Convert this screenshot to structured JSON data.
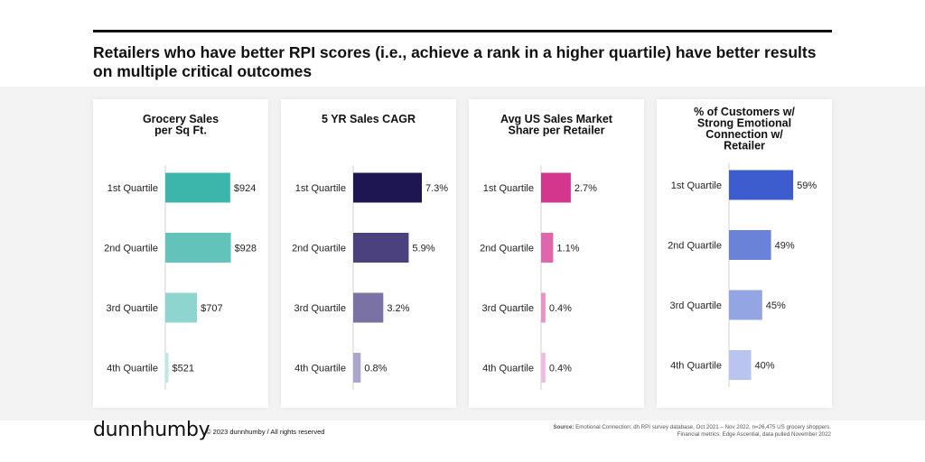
{
  "headline": "Retailers who have better RPI scores (i.e., achieve a rank in a higher quartile) have better results on multiple critical outcomes",
  "footer": {
    "logo": "dunnhumby",
    "copyright": "© 2023 dunnhumby / All rights reserved",
    "source_label": "Source:",
    "source_text": " Emotional Connection: dh RPI survey database, Oct 2021 – Nov 2022, n=26,475 US grocery shoppers.  Financial metrics: Edge Ascential, data pulled November 2022"
  },
  "chart_data": [
    {
      "type": "bar",
      "orientation": "horizontal",
      "title_lines": [
        "Grocery Sales",
        "per Sq Ft."
      ],
      "categories": [
        "1st Quartile",
        "2nd Quartile",
        "3rd Quartile",
        "4th Quartile"
      ],
      "values": [
        924,
        928,
        707,
        521
      ],
      "labels": [
        "$924",
        "$928",
        "$707",
        "$521"
      ],
      "xlim": [
        500,
        960
      ],
      "colors": [
        "#3cb6aa",
        "#62c3bb",
        "#8fd5cf",
        "#bfe7e3"
      ]
    },
    {
      "type": "bar",
      "orientation": "horizontal",
      "title_lines": [
        "5 YR Sales CAGR"
      ],
      "categories": [
        "1st Quartile",
        "2nd Quartile",
        "3rd Quartile",
        "4th Quartile"
      ],
      "values": [
        7.3,
        5.9,
        3.2,
        0.8
      ],
      "labels": [
        "7.3%",
        "5.9%",
        "3.2%",
        "0.8%"
      ],
      "xlim": [
        0,
        7.3
      ],
      "colors": [
        "#1e1652",
        "#4b417e",
        "#7a72a5",
        "#aba6cb"
      ]
    },
    {
      "type": "bar",
      "orientation": "horizontal",
      "title_lines": [
        "Avg US Sales Market",
        "Share per Retailer"
      ],
      "categories": [
        "1st Quartile",
        "2nd Quartile",
        "3rd Quartile",
        "4th Quartile"
      ],
      "values": [
        2.7,
        1.1,
        0.4,
        0.4
      ],
      "labels": [
        "2.7%",
        "1.1%",
        "0.4%",
        "0.4%"
      ],
      "xlim": [
        0,
        4.6
      ],
      "colors": [
        "#d4358d",
        "#e066ab",
        "#e994c5",
        "#f0bcdb"
      ]
    },
    {
      "type": "bar",
      "orientation": "horizontal",
      "title_lines": [
        "% of Customers w/",
        "Strong Emotional",
        "Connection w/",
        "Retailer"
      ],
      "categories": [
        "1st Quartile",
        "2nd Quartile",
        "3rd Quartile",
        "4th Quartile"
      ],
      "values": [
        59,
        49,
        45,
        40
      ],
      "labels": [
        "59%",
        "49%",
        "45%",
        "40%"
      ],
      "xlim": [
        30,
        61
      ],
      "colors": [
        "#3d5ccd",
        "#6a82d8",
        "#93a6e3",
        "#b9c5ee"
      ]
    }
  ]
}
